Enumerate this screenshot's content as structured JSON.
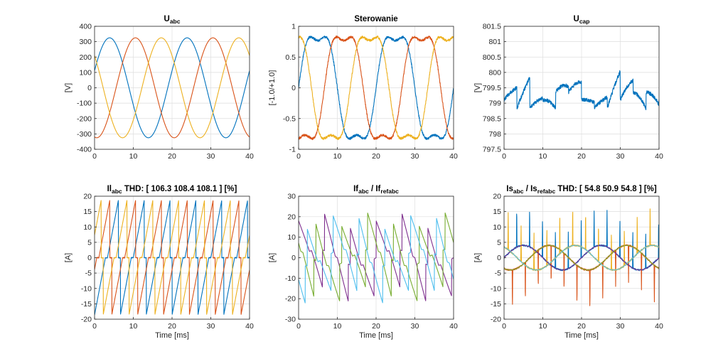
{
  "chart_data": [
    {
      "type": "line",
      "title": "U",
      "title_sub": "abc",
      "ylabel": "[V]",
      "xlabel": "",
      "xlim": [
        0,
        40
      ],
      "ylim": [
        -400,
        400
      ],
      "xticks": [
        0,
        10,
        20,
        30,
        40
      ],
      "yticks": [
        -400,
        -300,
        -200,
        -100,
        0,
        100,
        200,
        300,
        400
      ],
      "grid": true,
      "series": [
        {
          "name": "Ua",
          "color": "#0072BD",
          "style": "sine",
          "amplitude": 325,
          "offset": 0,
          "period_ms": 20,
          "phase_deg": 20
        },
        {
          "name": "Ub",
          "color": "#D95319",
          "style": "sine",
          "amplitude": 325,
          "offset": 0,
          "period_ms": 20,
          "phase_deg": -100
        },
        {
          "name": "Uc",
          "color": "#EDB120",
          "style": "sine",
          "amplitude": 325,
          "offset": 0,
          "period_ms": 20,
          "phase_deg": 140
        }
      ]
    },
    {
      "type": "line",
      "title": "Sterowanie",
      "title_sub": "",
      "ylabel": "[-1.0/+1.0]",
      "xlabel": "",
      "xlim": [
        0,
        40
      ],
      "ylim": [
        -1,
        1
      ],
      "xticks": [
        0,
        10,
        20,
        30,
        40
      ],
      "yticks": [
        -1,
        -0.5,
        0,
        0.5,
        1
      ],
      "grid": true,
      "series": [
        {
          "name": "sa",
          "color": "#0072BD",
          "style": "control",
          "amplitude": 1,
          "offset": 0,
          "period_ms": 20,
          "phase_deg": 0
        },
        {
          "name": "sb",
          "color": "#D95319",
          "style": "control",
          "amplitude": 1,
          "offset": 0,
          "period_ms": 20,
          "phase_deg": -120
        },
        {
          "name": "sc",
          "color": "#EDB120",
          "style": "control",
          "amplitude": 1,
          "offset": 0,
          "period_ms": 20,
          "phase_deg": 120
        }
      ]
    },
    {
      "type": "line",
      "title": "U",
      "title_sub": "cap",
      "ylabel": "[V]",
      "xlabel": "",
      "xlim": [
        0,
        40
      ],
      "ylim": [
        797.5,
        801.5
      ],
      "xticks": [
        0,
        10,
        20,
        30,
        40
      ],
      "yticks": [
        797.5,
        798,
        798.5,
        799,
        799.5,
        800,
        800.5,
        801,
        801.5
      ],
      "grid": true,
      "series": [
        {
          "name": "Ucap",
          "color": "#0072BD",
          "style": "ripple",
          "amplitude": 1.1,
          "offset": 799.1,
          "period_ms": 3.33,
          "phase_deg": 0
        }
      ]
    },
    {
      "type": "line",
      "title": "Il",
      "title_sub": "abc",
      "title_extra": "THD: [  106.3  108.4  108.1  ] [%]",
      "ylabel": "[A]",
      "xlabel": "Time [ms]",
      "xlim": [
        0,
        40
      ],
      "ylim": [
        -20,
        20
      ],
      "xticks": [
        0,
        10,
        20,
        30,
        40
      ],
      "yticks": [
        -20,
        -15,
        -10,
        -5,
        0,
        5,
        10,
        15,
        20
      ],
      "grid": true,
      "series": [
        {
          "name": "Ila",
          "color": "#0072BD",
          "style": "rectifier",
          "amplitude": 19,
          "offset": 0,
          "period_ms": 6.67,
          "phase_deg": 0
        },
        {
          "name": "Ilb",
          "color": "#D95319",
          "style": "rectifier",
          "amplitude": 19,
          "offset": 0,
          "period_ms": 6.67,
          "phase_deg": 120
        },
        {
          "name": "Ilc",
          "color": "#EDB120",
          "style": "rectifier",
          "amplitude": 19,
          "offset": 0,
          "period_ms": 6.67,
          "phase_deg": 240
        }
      ]
    },
    {
      "type": "line",
      "title": "If",
      "title_sub": "abc",
      "title_mid": " / If",
      "title_sub2": "refabc",
      "ylabel": "[A]",
      "xlabel": "Time [ms]",
      "xlim": [
        0,
        40
      ],
      "ylim": [
        -30,
        30
      ],
      "xticks": [
        0,
        10,
        20,
        30,
        40
      ],
      "yticks": [
        -30,
        -20,
        -10,
        0,
        10,
        20,
        30
      ],
      "grid": true,
      "series": [
        {
          "name": "Ifa",
          "color": "#7E2F8E",
          "style": "filter",
          "amplitude": 19,
          "offset": 0,
          "period_ms": 6.67,
          "phase_deg": 0
        },
        {
          "name": "Ifb",
          "color": "#77AC30",
          "style": "filter",
          "amplitude": 19,
          "offset": 0,
          "period_ms": 6.67,
          "phase_deg": 120
        },
        {
          "name": "Ifc",
          "color": "#4DBEEE",
          "style": "filter",
          "amplitude": 19,
          "offset": 0,
          "period_ms": 6.67,
          "phase_deg": 240
        }
      ]
    },
    {
      "type": "line",
      "title": "Is",
      "title_sub": "abc",
      "title_mid": " / Is",
      "title_sub2": "refabc",
      "title_extra": "THD: [  54.8  50.9  54.8  ] [%]",
      "ylabel": "[A]",
      "xlabel": "Time [ms]",
      "xlim": [
        0,
        40
      ],
      "ylim": [
        -20,
        20
      ],
      "xticks": [
        0,
        10,
        20,
        30,
        40
      ],
      "yticks": [
        -20,
        -15,
        -10,
        -5,
        0,
        5,
        10,
        15,
        20
      ],
      "grid": true,
      "series": [
        {
          "name": "Isa",
          "color": "#0072BD",
          "style": "source",
          "amplitude": 4,
          "offset": 0,
          "period_ms": 20,
          "phase_deg": 0
        },
        {
          "name": "Isb",
          "color": "#D95319",
          "style": "source",
          "amplitude": 4,
          "offset": 0,
          "period_ms": 20,
          "phase_deg": -120
        },
        {
          "name": "Isc",
          "color": "#EDB120",
          "style": "source",
          "amplitude": 4,
          "offset": 0,
          "period_ms": 20,
          "phase_deg": 120
        },
        {
          "name": "Isref_a",
          "color": "#7E2F8E",
          "style": "sine",
          "amplitude": 4,
          "offset": 0,
          "period_ms": 20,
          "phase_deg": 0
        },
        {
          "name": "Isref_b",
          "color": "#77AC30",
          "style": "sine",
          "amplitude": 4,
          "offset": 0,
          "period_ms": 20,
          "phase_deg": -120
        },
        {
          "name": "Isref_c",
          "color": "#4DBEEE",
          "style": "sine",
          "amplitude": 4,
          "offset": 0,
          "period_ms": 20,
          "phase_deg": 120
        }
      ]
    }
  ]
}
